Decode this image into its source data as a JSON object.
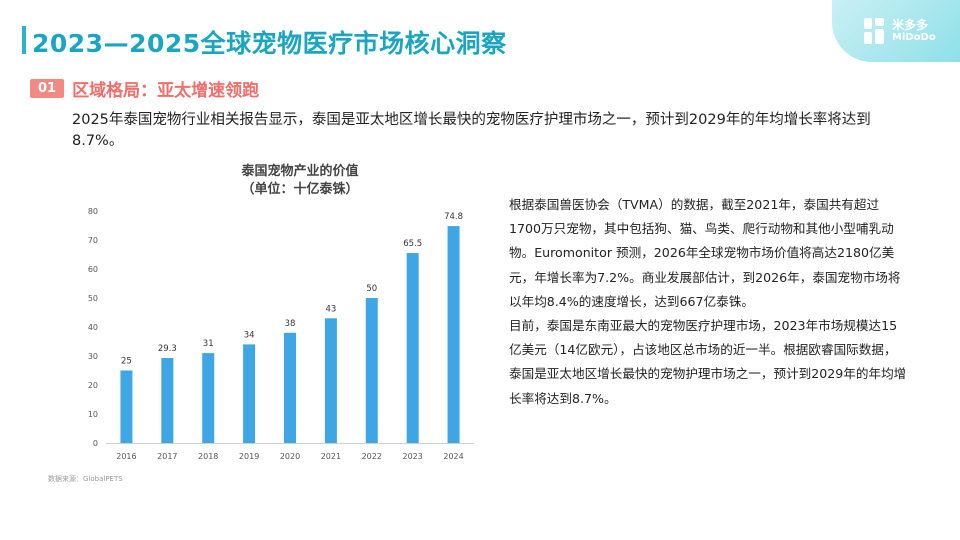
{
  "header": {
    "title": "2023—2025全球宠物医疗市场核心洞察",
    "logo_cn": "米多多",
    "logo_en": "MiDoDo"
  },
  "section": {
    "number": "01",
    "title": "区域格局：亚太增速领跑"
  },
  "intro_text": "2025年泰国宠物行业相关报告显示，泰国是亚太地区增长最快的宠物医疗护理市场之一，预计到2029年的年均增长率将达到8.7%。",
  "right_text": {
    "p1": "根据泰国兽医协会（TVMA）的数据，截至2021年，泰国共有超过1700万只宠物，其中包括狗、猫、鸟类、爬行动物和其他小型哺乳动物。Euromonitor 预测，2026年全球宠物市场价值将高达2180亿美元，年增长率为7.2%。商业发展部估计，到2026年，泰国宠物市场将以年均8.4%的速度增长，达到667亿泰铢。",
    "p2": "目前，泰国是东南亚最大的宠物医疗护理市场，2023年市场规模达15亿美元（14亿欧元），占该地区总市场的近一半。根据欧睿国际数据，泰国是亚太地区增长最快的宠物护理市场之一，预计到2029年的年均增长率将达到8.7%。"
  },
  "source_note": "数据来源：GlobalPETS",
  "chart_data": {
    "type": "bar",
    "title": "泰国宠物产业的价值",
    "subtitle": "（单位：十亿泰铢）",
    "categories": [
      "2016",
      "2017",
      "2018",
      "2019",
      "2020",
      "2021",
      "2022",
      "2023",
      "2024"
    ],
    "values": [
      25,
      29.3,
      31,
      34,
      38,
      43,
      50,
      65.5,
      74.8
    ],
    "data_labels": [
      "25",
      "29.3",
      "31",
      "34",
      "38",
      "43",
      "50",
      "65.5",
      "74.8"
    ],
    "ylim": [
      0,
      80
    ],
    "yticks": [
      0,
      10,
      20,
      30,
      40,
      50,
      60,
      70,
      80
    ],
    "grid": false,
    "bar_color": "#3ea6e4"
  }
}
